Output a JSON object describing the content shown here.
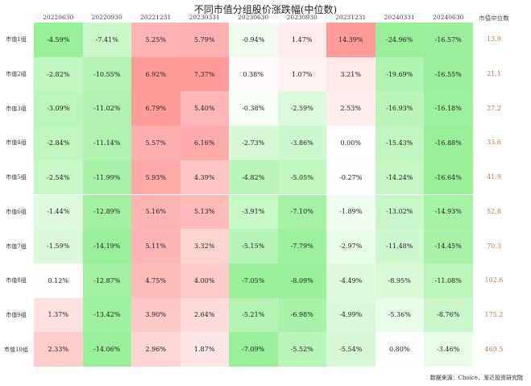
{
  "chart_data": {
    "type": "heatmap",
    "title": "不同市值分组股价涨跌幅(中位数)",
    "columns": [
      "20220630",
      "20220930",
      "20221231",
      "20230331",
      "20230630",
      "20230930",
      "20231231",
      "20240331",
      "20240630"
    ],
    "rows": [
      "市值1组",
      "市值2组",
      "市值3组",
      "市值4组",
      "市值5组",
      "市值6组",
      "市值7组",
      "市值8组",
      "市值9组",
      "市值10组"
    ],
    "values": [
      [
        -4.59,
        -7.41,
        5.25,
        5.79,
        -0.94,
        1.47,
        14.39,
        -24.96,
        -16.57
      ],
      [
        -2.82,
        -10.55,
        6.92,
        7.37,
        0.38,
        1.07,
        3.21,
        -19.69,
        -16.55
      ],
      [
        -3.09,
        -11.02,
        6.79,
        5.4,
        -0.38,
        -2.59,
        2.53,
        -16.93,
        -16.18
      ],
      [
        -2.84,
        -11.14,
        5.57,
        6.16,
        -2.73,
        -3.86,
        0.0,
        -15.43,
        -16.88
      ],
      [
        -2.54,
        -11.99,
        5.93,
        4.39,
        -4.82,
        -5.05,
        -0.27,
        -14.24,
        -16.64
      ],
      [
        -1.44,
        -12.89,
        5.16,
        5.13,
        -3.91,
        -7.1,
        -1.89,
        -13.02,
        -14.93
      ],
      [
        -1.59,
        -14.19,
        5.11,
        3.32,
        -5.15,
        -7.79,
        -2.97,
        -11.48,
        -14.45
      ],
      [
        0.12,
        -12.87,
        4.75,
        4.0,
        -7.05,
        -8.09,
        -4.49,
        -8.95,
        -11.08
      ],
      [
        1.37,
        -13.42,
        3.9,
        2.64,
        -5.21,
        -6.98,
        -4.99,
        -5.36,
        -8.76
      ],
      [
        2.33,
        -14.06,
        2.96,
        1.87,
        -7.09,
        -5.52,
        -5.54,
        0.8,
        -3.46
      ]
    ],
    "value_format": "percent_2dp",
    "median_header": "市值中位数",
    "median_values": [
      "13.9",
      "21.1",
      "27.2",
      "33.6",
      "41.9",
      "52.8",
      "70.3",
      "102.6",
      "175.2",
      "469.5"
    ]
  },
  "source": "数据来源：Choice，渐近投资研究院",
  "colors": {
    "positive": "#ff9b9b",
    "negative": "#98f098",
    "median_text": "#c07a45"
  }
}
